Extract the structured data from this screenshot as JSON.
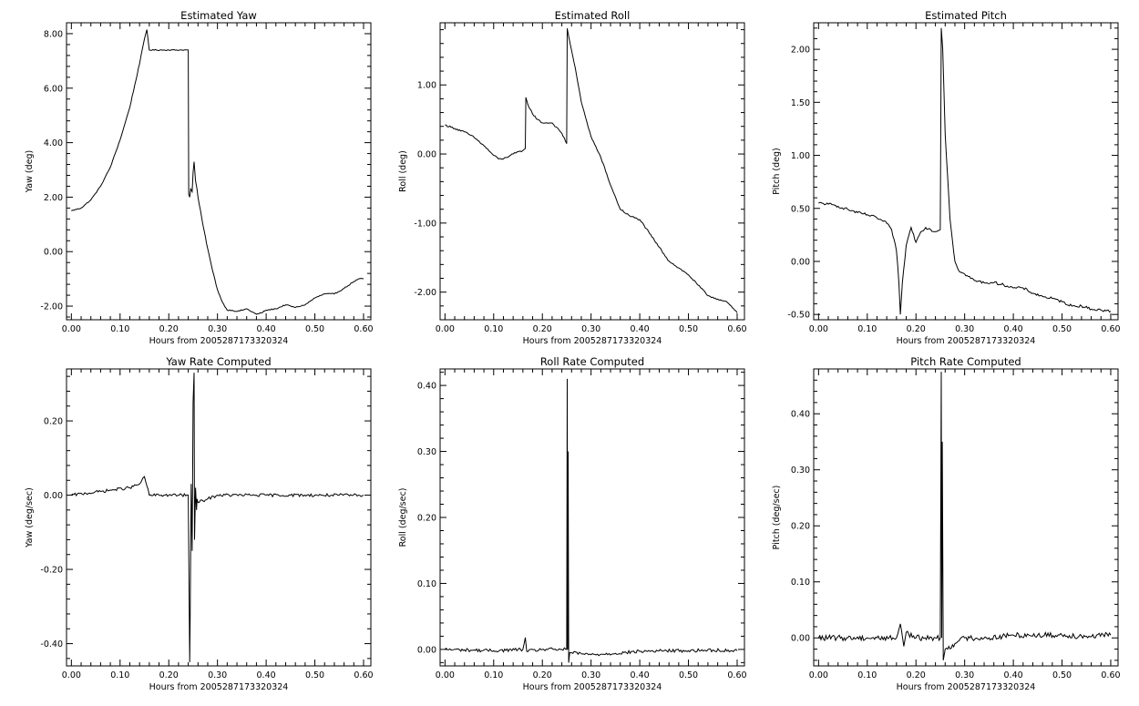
{
  "chart_data": [
    {
      "type": "line",
      "title": "Estimated Yaw",
      "xlabel": "Hours from 2005287173320324",
      "ylabel": "Yaw (deg)",
      "xlim": [
        -0.01,
        0.615
      ],
      "ylim": [
        -2.5,
        8.4
      ],
      "xticks": [
        0,
        0.1,
        0.2,
        0.3,
        0.4,
        0.5,
        0.6
      ],
      "xtick_labels": [
        "0.00",
        "0.10",
        "0.20",
        "0.30",
        "0.40",
        "0.50",
        "0.60"
      ],
      "yticks": [
        -2,
        0,
        2,
        4,
        6,
        8
      ],
      "ytick_labels": [
        "-2.00",
        "0.00",
        "2.00",
        "4.00",
        "6.00",
        "8.00"
      ],
      "grid": false,
      "noise": 0.02,
      "series": [
        {
          "x": [
            0,
            0.02,
            0.04,
            0.06,
            0.08,
            0.1,
            0.12,
            0.14,
            0.15,
            0.155,
            0.16,
            0.2,
            0.24,
            0.241,
            0.243,
            0.245,
            0.248,
            0.25,
            0.252,
            0.255,
            0.258,
            0.26,
            0.27,
            0.28,
            0.29,
            0.3,
            0.31,
            0.32,
            0.33,
            0.34,
            0.36,
            0.38,
            0.39,
            0.4,
            0.42,
            0.44,
            0.46,
            0.48,
            0.5,
            0.52,
            0.54,
            0.56,
            0.58,
            0.59,
            0.6
          ],
          "y": [
            1.5,
            1.6,
            1.9,
            2.4,
            3.1,
            4.1,
            5.3,
            6.9,
            7.8,
            8.15,
            7.4,
            7.4,
            7.4,
            2.1,
            2.0,
            2.3,
            2.2,
            2.9,
            3.3,
            2.6,
            2.3,
            2.0,
            1.0,
            0.1,
            -0.7,
            -1.4,
            -1.85,
            -2.15,
            -2.15,
            -2.2,
            -2.1,
            -2.3,
            -2.25,
            -2.15,
            -2.1,
            -1.95,
            -2.05,
            -1.95,
            -1.7,
            -1.55,
            -1.55,
            -1.35,
            -1.1,
            -1.0,
            -1.0
          ]
        }
      ]
    },
    {
      "type": "line",
      "title": "Estimated Roll",
      "xlabel": "Hours from 2005287173320324",
      "ylabel": "Roll (deg)",
      "xlim": [
        -0.01,
        0.615
      ],
      "ylim": [
        -2.4,
        1.9
      ],
      "xticks": [
        0,
        0.1,
        0.2,
        0.3,
        0.4,
        0.5,
        0.6
      ],
      "xtick_labels": [
        "0.00",
        "0.10",
        "0.20",
        "0.30",
        "0.40",
        "0.50",
        "0.60"
      ],
      "yticks": [
        -2,
        -1,
        0,
        1
      ],
      "ytick_labels": [
        "-2.00",
        "-1.00",
        "0.00",
        "1.00"
      ],
      "grid": false,
      "noise": 0.012,
      "series": [
        {
          "x": [
            0,
            0.02,
            0.04,
            0.06,
            0.08,
            0.1,
            0.11,
            0.12,
            0.14,
            0.16,
            0.165,
            0.166,
            0.17,
            0.18,
            0.19,
            0.2,
            0.22,
            0.24,
            0.25,
            0.251,
            0.252,
            0.26,
            0.27,
            0.28,
            0.3,
            0.32,
            0.34,
            0.36,
            0.38,
            0.4,
            0.42,
            0.44,
            0.46,
            0.48,
            0.5,
            0.52,
            0.54,
            0.56,
            0.58,
            0.6
          ],
          "y": [
            0.42,
            0.37,
            0.32,
            0.24,
            0.12,
            -0.02,
            -0.07,
            -0.07,
            0.0,
            0.05,
            0.08,
            0.82,
            0.72,
            0.58,
            0.5,
            0.45,
            0.45,
            0.3,
            0.15,
            1.82,
            1.78,
            1.5,
            1.15,
            0.75,
            0.25,
            -0.05,
            -0.45,
            -0.8,
            -0.9,
            -0.95,
            -1.15,
            -1.35,
            -1.55,
            -1.65,
            -1.75,
            -1.9,
            -2.05,
            -2.1,
            -2.15,
            -2.3
          ]
        }
      ]
    },
    {
      "type": "line",
      "title": "Estimated Pitch",
      "xlabel": "Hours from 2005287173320324",
      "ylabel": "Pitch (deg)",
      "xlim": [
        -0.01,
        0.615
      ],
      "ylim": [
        -0.55,
        2.25
      ],
      "xticks": [
        0,
        0.1,
        0.2,
        0.3,
        0.4,
        0.5,
        0.6
      ],
      "xtick_labels": [
        "0.00",
        "0.10",
        "0.20",
        "0.30",
        "0.40",
        "0.50",
        "0.60"
      ],
      "yticks": [
        -0.5,
        0,
        0.5,
        1,
        1.5,
        2
      ],
      "ytick_labels": [
        "-0.50",
        "0.00",
        "0.50",
        "1.00",
        "1.50",
        "2.00"
      ],
      "grid": false,
      "noise": 0.012,
      "series": [
        {
          "x": [
            0,
            0.02,
            0.04,
            0.06,
            0.08,
            0.1,
            0.12,
            0.14,
            0.15,
            0.16,
            0.165,
            0.168,
            0.172,
            0.18,
            0.19,
            0.2,
            0.21,
            0.22,
            0.23,
            0.24,
            0.25,
            0.252,
            0.255,
            0.26,
            0.27,
            0.28,
            0.29,
            0.3,
            0.32,
            0.34,
            0.36,
            0.38,
            0.4,
            0.42,
            0.44,
            0.46,
            0.48,
            0.5,
            0.52,
            0.54,
            0.56,
            0.58,
            0.6
          ],
          "y": [
            0.55,
            0.54,
            0.52,
            0.49,
            0.46,
            0.44,
            0.41,
            0.36,
            0.3,
            0.1,
            -0.2,
            -0.5,
            -0.2,
            0.15,
            0.32,
            0.18,
            0.28,
            0.32,
            0.3,
            0.28,
            0.3,
            2.2,
            2.0,
            1.2,
            0.4,
            0.0,
            -0.1,
            -0.12,
            -0.18,
            -0.2,
            -0.2,
            -0.22,
            -0.25,
            -0.25,
            -0.3,
            -0.33,
            -0.35,
            -0.38,
            -0.42,
            -0.42,
            -0.45,
            -0.46,
            -0.47
          ]
        }
      ]
    },
    {
      "type": "line",
      "title": "Yaw Rate Computed",
      "xlabel": "Hours from 2005287173320324",
      "ylabel": "Yaw (deg/sec)",
      "xlim": [
        -0.01,
        0.615
      ],
      "ylim": [
        -0.46,
        0.34
      ],
      "xticks": [
        0,
        0.1,
        0.2,
        0.3,
        0.4,
        0.5,
        0.6
      ],
      "xtick_labels": [
        "0.00",
        "0.10",
        "0.20",
        "0.30",
        "0.40",
        "0.50",
        "0.60"
      ],
      "yticks": [
        -0.4,
        -0.2,
        0,
        0.2
      ],
      "ytick_labels": [
        "-0.40",
        "-0.20",
        "0.00",
        "0.20"
      ],
      "grid": false,
      "noise": 0.004,
      "series": [
        {
          "x": [
            0,
            0.03,
            0.06,
            0.09,
            0.12,
            0.14,
            0.15,
            0.155,
            0.16,
            0.2,
            0.24,
            0.243,
            0.244,
            0.246,
            0.248,
            0.25,
            0.252,
            0.253,
            0.255,
            0.257,
            0.258,
            0.26,
            0.27,
            0.28,
            0.3,
            0.35,
            0.4,
            0.45,
            0.5,
            0.55,
            0.6
          ],
          "y": [
            0.0,
            0.005,
            0.01,
            0.015,
            0.02,
            0.03,
            0.05,
            0.025,
            0.0,
            0.0,
            0.0,
            -0.45,
            -0.33,
            0.03,
            -0.15,
            0.25,
            0.33,
            -0.12,
            0.02,
            -0.04,
            -0.01,
            -0.02,
            -0.015,
            -0.01,
            0.0,
            0.0,
            0.0,
            0.0,
            0.0,
            0.0,
            0.0
          ]
        }
      ]
    },
    {
      "type": "line",
      "title": "Roll Rate Computed",
      "xlabel": "Hours from 2005287173320324",
      "ylabel": "Roll (deg/sec)",
      "xlim": [
        -0.01,
        0.615
      ],
      "ylim": [
        -0.025,
        0.425
      ],
      "xticks": [
        0,
        0.1,
        0.2,
        0.3,
        0.4,
        0.5,
        0.6
      ],
      "xtick_labels": [
        "0.00",
        "0.10",
        "0.20",
        "0.30",
        "0.40",
        "0.50",
        "0.60"
      ],
      "yticks": [
        0,
        0.1,
        0.2,
        0.3,
        0.4
      ],
      "ytick_labels": [
        "0.00",
        "0.10",
        "0.20",
        "0.30",
        "0.40"
      ],
      "grid": false,
      "noise": 0.0025,
      "series": [
        {
          "x": [
            0,
            0.1,
            0.16,
            0.165,
            0.168,
            0.2,
            0.24,
            0.25,
            0.251,
            0.252,
            0.253,
            0.254,
            0.256,
            0.26,
            0.3,
            0.35,
            0.4,
            0.45,
            0.5,
            0.55,
            0.6
          ],
          "y": [
            0.0,
            -0.002,
            0.0,
            0.018,
            -0.003,
            0.0,
            0.0,
            0.0,
            0.41,
            0.0,
            0.3,
            -0.02,
            -0.005,
            -0.005,
            -0.008,
            -0.006,
            -0.003,
            -0.002,
            -0.002,
            -0.001,
            -0.002
          ]
        }
      ]
    },
    {
      "type": "line",
      "title": "Pitch Rate Computed",
      "xlabel": "Hours from 2005287173320324",
      "ylabel": "Pitch (deg/sec)",
      "xlim": [
        -0.01,
        0.615
      ],
      "ylim": [
        -0.05,
        0.48
      ],
      "xticks": [
        0,
        0.1,
        0.2,
        0.3,
        0.4,
        0.5,
        0.6
      ],
      "xtick_labels": [
        "0.00",
        "0.10",
        "0.20",
        "0.30",
        "0.40",
        "0.50",
        "0.60"
      ],
      "yticks": [
        0,
        0.1,
        0.2,
        0.3,
        0.4
      ],
      "ytick_labels": [
        "0.00",
        "0.10",
        "0.20",
        "0.30",
        "0.40"
      ],
      "grid": false,
      "noise": 0.005,
      "series": [
        {
          "x": [
            0,
            0.1,
            0.16,
            0.168,
            0.17,
            0.175,
            0.18,
            0.2,
            0.24,
            0.25,
            0.252,
            0.253,
            0.254,
            0.256,
            0.26,
            0.28,
            0.3,
            0.35,
            0.4,
            0.45,
            0.5,
            0.55,
            0.6
          ],
          "y": [
            0.0,
            0.0,
            0.0,
            0.025,
            0.015,
            -0.015,
            0.01,
            0.0,
            0.0,
            0.0,
            0.475,
            0.0,
            0.35,
            -0.04,
            -0.02,
            -0.01,
            0.0,
            0.0,
            0.005,
            0.005,
            0.005,
            0.003,
            0.005
          ]
        }
      ]
    }
  ]
}
